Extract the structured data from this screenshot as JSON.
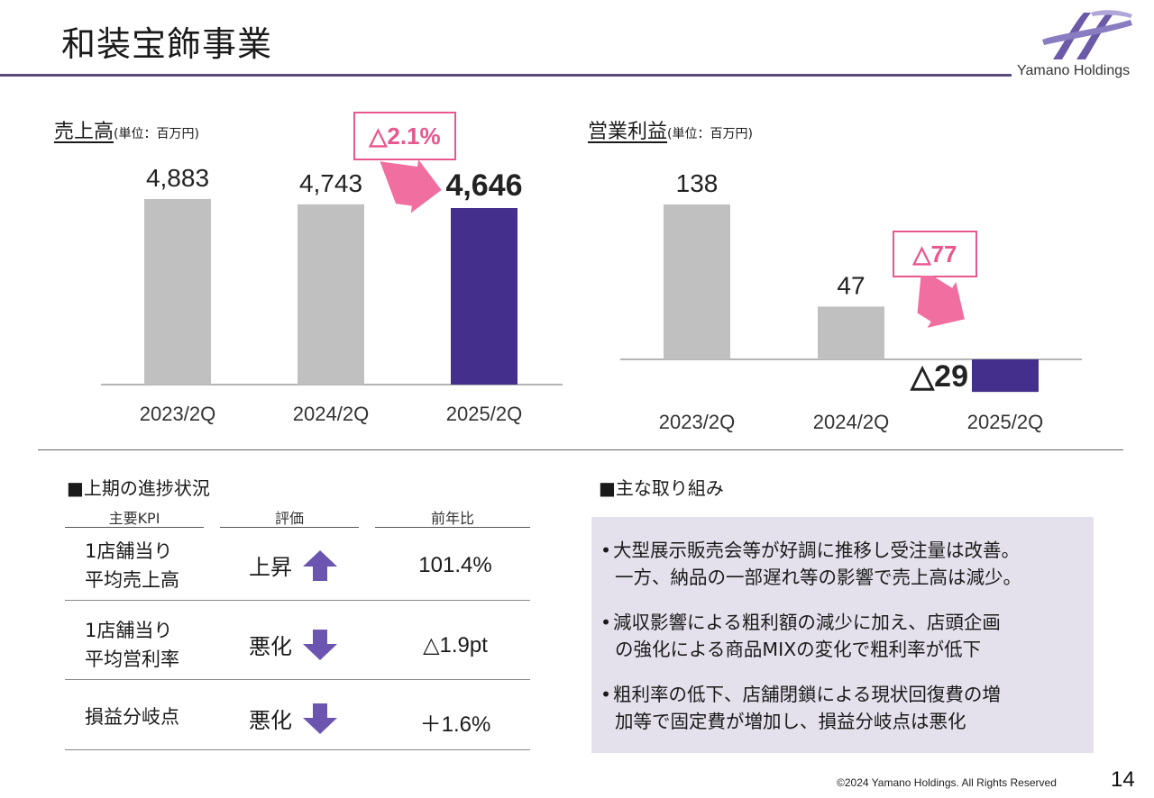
{
  "page": {
    "title": "和装宝飾事業",
    "brand": "Yamano Holdings",
    "copyright": "©2024 Yamano Holdings. All Rights Reserved",
    "page_number": "14"
  },
  "colors": {
    "bar_gray": "#c0c0c0",
    "bar_highlight": "#44308c",
    "pink_arrow": "#f06ea0",
    "pink_text": "#e8578e",
    "accent_purple": "#6b55b0",
    "panel_bg": "#e4e1ec"
  },
  "chart_data": [
    {
      "type": "bar",
      "title": "売上高",
      "unit": "(単位：百万円)",
      "categories": [
        "2023/2Q",
        "2024/2Q",
        "2025/2Q"
      ],
      "values": [
        4883,
        4743,
        4646
      ],
      "value_labels": [
        "4,883",
        "4,743",
        "4,646"
      ],
      "highlight_index": 2,
      "change_label": "△2.1%"
    },
    {
      "type": "bar",
      "title": "営業利益",
      "unit": "(単位：百万円)",
      "categories": [
        "2023/2Q",
        "2024/2Q",
        "2025/2Q"
      ],
      "values": [
        138,
        47,
        -29
      ],
      "value_labels": [
        "138",
        "47",
        "△29"
      ],
      "highlight_index": 2,
      "change_label": "△77"
    }
  ],
  "progress": {
    "heading": "■上期の進捗状況",
    "columns": [
      "主要KPI",
      "評価",
      "前年比"
    ],
    "rows": [
      {
        "metric_line1": "1店舗当り",
        "metric_line2": "平均売上高",
        "evaluation": "上昇",
        "direction": "up-arrow-icon",
        "yoy": "101.4%"
      },
      {
        "metric_line1": "1店舗当り",
        "metric_line2": "平均営利率",
        "evaluation": "悪化",
        "direction": "down-arrow-icon",
        "yoy": "△1.9pt"
      },
      {
        "metric_line1": "損益分岐点",
        "metric_line2": "",
        "evaluation": "悪化",
        "direction": "down-arrow-icon",
        "yoy": "＋1.6%"
      }
    ]
  },
  "initiatives": {
    "heading": "■主な取り組み",
    "items": [
      {
        "line1": "大型展示販売会等が好調に推移し受注量は改善。",
        "line2": "一方、納品の一部遅れ等の影響で売上高は減少。"
      },
      {
        "line1": "減収影響による粗利額の減少に加え、店頭企画",
        "line2": "の強化による商品MIXの変化で粗利率が低下"
      },
      {
        "line1": "粗利率の低下、店舗閉鎖による現状回復費の増",
        "line2": "加等で固定費が増加し、損益分岐点は悪化"
      }
    ]
  }
}
